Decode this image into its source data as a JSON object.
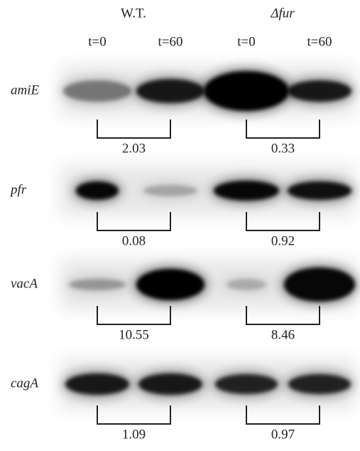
{
  "header": {
    "groups": [
      "W.T.",
      "Δfur"
    ],
    "lanes": [
      "t=0",
      "t=60",
      "t=0",
      "t=60"
    ]
  },
  "rows": [
    {
      "gene": "amiE",
      "ratios": [
        "2.03",
        "0.33"
      ]
    },
    {
      "gene": "pfr",
      "ratios": [
        "0.08",
        "0.92"
      ]
    },
    {
      "gene": "vacA",
      "ratios": [
        "10.55",
        "8.46"
      ]
    },
    {
      "gene": "cagA",
      "ratios": [
        "1.09",
        "0.97"
      ]
    }
  ]
}
